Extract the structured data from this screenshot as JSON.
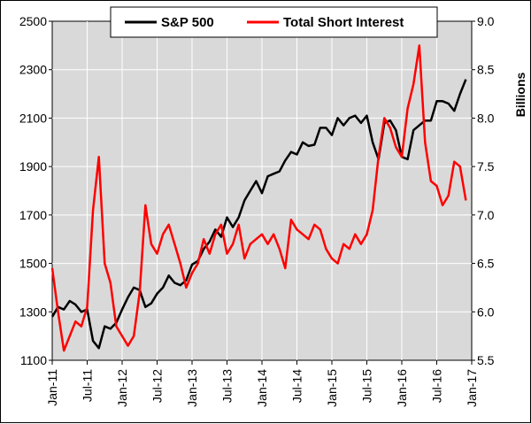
{
  "chart_data": {
    "type": "line",
    "title": "",
    "grid": true,
    "legend_placement": "top-center",
    "left_axis": {
      "label": "",
      "ylim": [
        1100,
        2500
      ],
      "ticks": [
        "1100",
        "1300",
        "1500",
        "1700",
        "1900",
        "2100",
        "2300",
        "2500"
      ]
    },
    "right_axis": {
      "label": "Billions",
      "ylim": [
        5.5,
        9.0
      ],
      "ticks": [
        "5.5",
        "6.0",
        "6.5",
        "7.0",
        "7.5",
        "8.0",
        "8.5",
        "9.0"
      ]
    },
    "x_ticks": [
      "Jan-11",
      "Jul-11",
      "Jan-12",
      "Jul-12",
      "Jan-13",
      "Jul-13",
      "Jan-14",
      "Jul-14",
      "Jan-15",
      "Jul-15",
      "Jan-16",
      "Jul-16",
      "Jan-17"
    ],
    "xlim": [
      "2011-01",
      "2017-01"
    ],
    "series": [
      {
        "name": "S&P 500",
        "axis": "left",
        "color": "#000000",
        "x": [
          "2011-01",
          "2011-02",
          "2011-03",
          "2011-04",
          "2011-05",
          "2011-06",
          "2011-07",
          "2011-08",
          "2011-09",
          "2011-10",
          "2011-11",
          "2011-12",
          "2012-01",
          "2012-02",
          "2012-03",
          "2012-04",
          "2012-05",
          "2012-06",
          "2012-07",
          "2012-08",
          "2012-09",
          "2012-10",
          "2012-11",
          "2012-12",
          "2013-01",
          "2013-02",
          "2013-03",
          "2013-04",
          "2013-05",
          "2013-06",
          "2013-07",
          "2013-08",
          "2013-09",
          "2013-10",
          "2013-11",
          "2013-12",
          "2014-01",
          "2014-02",
          "2014-03",
          "2014-04",
          "2014-05",
          "2014-06",
          "2014-07",
          "2014-08",
          "2014-09",
          "2014-10",
          "2014-11",
          "2014-12",
          "2015-01",
          "2015-02",
          "2015-03",
          "2015-04",
          "2015-05",
          "2015-06",
          "2015-07",
          "2015-08",
          "2015-09",
          "2015-10",
          "2015-11",
          "2015-12",
          "2016-01",
          "2016-02",
          "2016-03",
          "2016-04",
          "2016-05",
          "2016-06",
          "2016-07",
          "2016-08",
          "2016-09",
          "2016-10",
          "2016-11",
          "2016-12"
        ],
        "values": [
          1280,
          1320,
          1310,
          1345,
          1330,
          1300,
          1310,
          1180,
          1150,
          1240,
          1230,
          1255,
          1310,
          1360,
          1400,
          1390,
          1320,
          1335,
          1375,
          1400,
          1450,
          1420,
          1410,
          1430,
          1495,
          1510,
          1560,
          1590,
          1640,
          1610,
          1690,
          1650,
          1690,
          1760,
          1800,
          1840,
          1790,
          1860,
          1870,
          1880,
          1925,
          1960,
          1950,
          2000,
          1985,
          1990,
          2060,
          2060,
          2030,
          2100,
          2070,
          2100,
          2110,
          2080,
          2110,
          2000,
          1930,
          2080,
          2090,
          2050,
          1940,
          1930,
          2050,
          2070,
          2090,
          2090,
          2170,
          2170,
          2160,
          2130,
          2200,
          2260
        ]
      },
      {
        "name": "Total Short Interest",
        "axis": "right",
        "color": "#ff0000",
        "x": [
          "2011-01",
          "2011-02",
          "2011-03",
          "2011-04",
          "2011-05",
          "2011-06",
          "2011-07",
          "2011-08",
          "2011-09",
          "2011-10",
          "2011-11",
          "2011-12",
          "2012-01",
          "2012-02",
          "2012-03",
          "2012-04",
          "2012-05",
          "2012-06",
          "2012-07",
          "2012-08",
          "2012-09",
          "2012-10",
          "2012-11",
          "2012-12",
          "2013-01",
          "2013-02",
          "2013-03",
          "2013-04",
          "2013-05",
          "2013-06",
          "2013-07",
          "2013-08",
          "2013-09",
          "2013-10",
          "2013-11",
          "2013-12",
          "2014-01",
          "2014-02",
          "2014-03",
          "2014-04",
          "2014-05",
          "2014-06",
          "2014-07",
          "2014-08",
          "2014-09",
          "2014-10",
          "2014-11",
          "2014-12",
          "2015-01",
          "2015-02",
          "2015-03",
          "2015-04",
          "2015-05",
          "2015-06",
          "2015-07",
          "2015-08",
          "2015-09",
          "2015-10",
          "2015-11",
          "2015-12",
          "2016-01",
          "2016-02",
          "2016-03",
          "2016-04",
          "2016-05",
          "2016-06",
          "2016-07",
          "2016-08",
          "2016-09",
          "2016-10",
          "2016-11",
          "2016-12"
        ],
        "values": [
          6.45,
          6.0,
          5.6,
          5.75,
          5.9,
          5.85,
          6.05,
          7.05,
          7.6,
          6.5,
          6.3,
          5.85,
          5.75,
          5.65,
          5.75,
          6.2,
          7.1,
          6.7,
          6.6,
          6.8,
          6.9,
          6.7,
          6.5,
          6.25,
          6.4,
          6.5,
          6.75,
          6.6,
          6.8,
          6.9,
          6.6,
          6.7,
          6.9,
          6.55,
          6.7,
          6.75,
          6.8,
          6.7,
          6.8,
          6.65,
          6.45,
          6.95,
          6.85,
          6.8,
          6.75,
          6.9,
          6.85,
          6.65,
          6.55,
          6.5,
          6.7,
          6.65,
          6.8,
          6.7,
          6.8,
          7.05,
          7.6,
          8.0,
          7.9,
          7.7,
          7.6,
          8.1,
          8.35,
          8.75,
          7.75,
          7.35,
          7.3,
          7.1,
          7.2,
          7.55,
          7.5,
          7.15
        ]
      }
    ]
  }
}
